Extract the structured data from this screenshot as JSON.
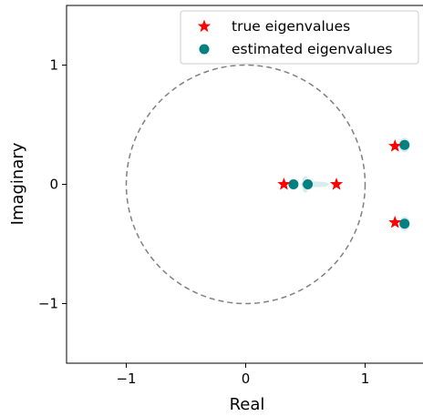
{
  "chart_data": {
    "type": "scatter",
    "title": "",
    "xlabel": "Real",
    "ylabel": "Imaginary",
    "xlim": [
      -1.5,
      1.5
    ],
    "ylim": [
      -1.5,
      1.5
    ],
    "xticks": [
      -1,
      0,
      1
    ],
    "xtick_labels": [
      "−1",
      "0",
      "1"
    ],
    "yticks": [
      -1,
      0,
      1
    ],
    "ytick_labels": [
      "−1",
      "0",
      "1"
    ],
    "grid": false,
    "legend_position": "top-right",
    "unit_circle": {
      "center": [
        0,
        0
      ],
      "radius": 1,
      "style": "dashed",
      "color": "#808080"
    },
    "series": [
      {
        "name": "true eigenvalues",
        "marker": "star",
        "color": "#ff0000",
        "points": [
          [
            0.32,
            0.0
          ],
          [
            0.76,
            0.0
          ],
          [
            1.25,
            0.32
          ],
          [
            1.25,
            -0.32
          ]
        ]
      },
      {
        "name": "estimated eigenvalues",
        "marker": "circle",
        "color": "#008080",
        "points": [
          [
            0.4,
            0.0
          ],
          [
            0.52,
            0.0
          ],
          [
            1.33,
            0.33
          ],
          [
            1.33,
            -0.33
          ]
        ]
      }
    ],
    "estimate_spread": [
      {
        "center": [
          0.5,
          0.0
        ],
        "rx": 0.03,
        "ry": 0.07
      },
      {
        "center": [
          0.58,
          0.0
        ],
        "rx": 0.12,
        "ry": 0.025
      },
      {
        "center": [
          1.33,
          0.33
        ],
        "rx": 0.045,
        "ry": 0.06
      },
      {
        "center": [
          1.33,
          -0.33
        ],
        "rx": 0.045,
        "ry": 0.06
      }
    ]
  }
}
